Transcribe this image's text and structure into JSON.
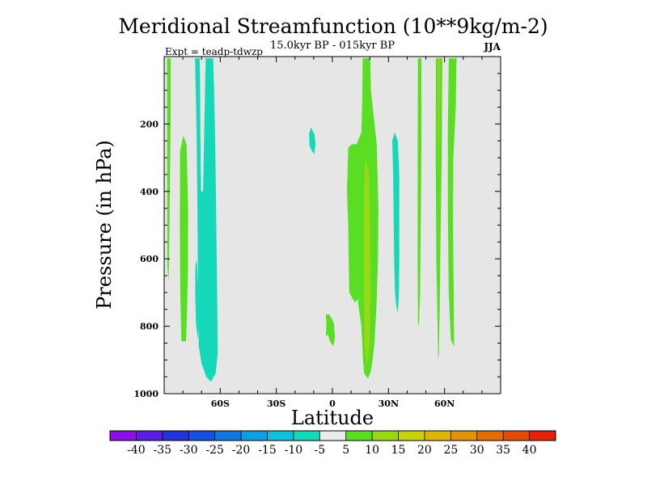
{
  "chart_data": {
    "type": "contour",
    "title": "Meridional Streamfunction (10**9kg/m-2)",
    "subtitle": "15.0kyr BP - 015kyr BP",
    "experiment": "Expt = teadp-tdwzp",
    "season": "JJA",
    "xlabel": "Latitude",
    "ylabel": "Pressure (in hPa)",
    "xlim": [
      -90,
      90
    ],
    "ylim": [
      0,
      1000
    ],
    "y_reversed": true,
    "x_ticks": [
      {
        "value": -60,
        "label": "60S"
      },
      {
        "value": -30,
        "label": "30S"
      },
      {
        "value": 0,
        "label": "0"
      },
      {
        "value": 30,
        "label": "30N"
      },
      {
        "value": 60,
        "label": "60N"
      }
    ],
    "y_ticks": [
      {
        "value": 200,
        "label": "200"
      },
      {
        "value": 400,
        "label": "400"
      },
      {
        "value": 600,
        "label": "600"
      },
      {
        "value": 800,
        "label": "800"
      },
      {
        "value": 1000,
        "label": "1000"
      }
    ],
    "background_color": "#e6e6e6",
    "colorbar": {
      "levels": [
        "-40",
        "-35",
        "-30",
        "-25",
        "-20",
        "-15",
        "-10",
        "-5",
        "5",
        "10",
        "15",
        "20",
        "25",
        "30",
        "35",
        "40"
      ],
      "colors": [
        "#8a10e6",
        "#5a1ee0",
        "#2233d8",
        "#1750df",
        "#1278e0",
        "#0f9ee0",
        "#10c0dc",
        "#14d8b8",
        "#ebebeb",
        "#59de24",
        "#98d815",
        "#c8d20e",
        "#dcb60b",
        "#e0920b",
        "#e26e0a",
        "#e24a09",
        "#e2220a"
      ]
    },
    "regions": [
      {
        "name": "sh-polar-positive-strip",
        "sign": "positive",
        "level": "5 to 10",
        "polygon": [
          [
            -88.5,
            5
          ],
          [
            -86.5,
            5
          ],
          [
            -86.5,
            150
          ],
          [
            -86.8,
            320
          ],
          [
            -87.2,
            520
          ],
          [
            -87.6,
            670
          ],
          [
            -88.3,
            620
          ],
          [
            -88.4,
            300
          ]
        ]
      },
      {
        "name": "sh-60-positive-cell",
        "sign": "positive",
        "level": "5 to 10",
        "polygon": [
          [
            -81.5,
            280
          ],
          [
            -79.8,
            235
          ],
          [
            -78,
            260
          ],
          [
            -77.2,
            450
          ],
          [
            -77.3,
            640
          ],
          [
            -77.8,
            760
          ],
          [
            -78.3,
            845
          ],
          [
            -80.8,
            845
          ],
          [
            -81.4,
            700
          ],
          [
            -81.6,
            500
          ]
        ]
      },
      {
        "name": "sh-60-negative-column",
        "sign": "negative",
        "level": "-5 to -10",
        "polygon": [
          [
            -73.5,
            5
          ],
          [
            -71,
            5
          ],
          [
            -70.8,
            80
          ],
          [
            -70.7,
            180
          ],
          [
            -70.5,
            300
          ],
          [
            -70.3,
            400
          ],
          [
            -69.2,
            400
          ],
          [
            -67.8,
            5
          ],
          [
            -63.8,
            5
          ],
          [
            -63.3,
            100
          ],
          [
            -62.7,
            250
          ],
          [
            -62,
            550
          ],
          [
            -61.6,
            720
          ],
          [
            -61.3,
            880
          ],
          [
            -62.5,
            940
          ],
          [
            -65,
            965
          ],
          [
            -67.5,
            950
          ],
          [
            -70,
            910
          ],
          [
            -71.5,
            860
          ],
          [
            -72,
            600
          ],
          [
            -72.3,
            400
          ],
          [
            -72.6,
            250
          ],
          [
            -73,
            120
          ]
        ]
      },
      {
        "name": "sh-60-negative-lower-cell",
        "sign": "negative",
        "level": "-5 to -10",
        "polygon": [
          [
            -73.3,
            620
          ],
          [
            -72.6,
            600
          ],
          [
            -71.8,
            680
          ],
          [
            -71.5,
            800
          ],
          [
            -72,
            840
          ],
          [
            -73,
            790
          ],
          [
            -73.4,
            700
          ]
        ]
      },
      {
        "name": "sh-15-negative-blob",
        "sign": "negative",
        "level": "-5 to -10",
        "polygon": [
          [
            -12.5,
            230
          ],
          [
            -11.5,
            210
          ],
          [
            -9.6,
            230
          ],
          [
            -9,
            260
          ],
          [
            -9.7,
            290
          ],
          [
            -11,
            280
          ],
          [
            -12.2,
            265
          ]
        ]
      },
      {
        "name": "eq-positive-blob",
        "sign": "positive",
        "level": "5 to 10",
        "polygon": [
          [
            -3.5,
            765
          ],
          [
            -1.8,
            765
          ],
          [
            -0.6,
            775
          ],
          [
            0.8,
            790
          ],
          [
            1.3,
            830
          ],
          [
            0.6,
            860
          ],
          [
            -1.3,
            845
          ],
          [
            -2.4,
            825
          ],
          [
            -3.5,
            830
          ],
          [
            -3.2,
            800
          ]
        ]
      },
      {
        "name": "nh-20-positive-column",
        "sign": "positive",
        "level": "5 to 10",
        "polygon": [
          [
            8.5,
            270
          ],
          [
            10.5,
            260
          ],
          [
            13,
            260
          ],
          [
            15.5,
            225
          ],
          [
            16,
            120
          ],
          [
            16.2,
            5
          ],
          [
            20.3,
            5
          ],
          [
            20.6,
            100
          ],
          [
            21.6,
            150
          ],
          [
            23.7,
            260
          ],
          [
            24.6,
            450
          ],
          [
            24.4,
            600
          ],
          [
            23.5,
            750
          ],
          [
            22.5,
            850
          ],
          [
            21.5,
            900
          ],
          [
            20.5,
            935
          ],
          [
            19,
            955
          ],
          [
            17,
            940
          ],
          [
            16.4,
            900
          ],
          [
            15.5,
            800
          ],
          [
            13.5,
            720
          ],
          [
            12,
            730
          ],
          [
            9,
            700
          ],
          [
            8.5,
            500
          ],
          [
            7.8,
            400
          ]
        ]
      },
      {
        "name": "nh-20-core",
        "sign": "positive",
        "level": "10 to 15",
        "polygon": [
          [
            17.5,
            300
          ],
          [
            19.5,
            340
          ],
          [
            20.2,
            500
          ],
          [
            20.4,
            700
          ],
          [
            20,
            860
          ],
          [
            18.5,
            920
          ],
          [
            17.2,
            850
          ],
          [
            16.9,
            600
          ],
          [
            17,
            400
          ]
        ]
      },
      {
        "name": "nh-30-negative-column",
        "sign": "negative",
        "level": "-5 to -10",
        "polygon": [
          [
            32,
            250
          ],
          [
            33.3,
            225
          ],
          [
            35,
            250
          ],
          [
            35.8,
            350
          ],
          [
            35.8,
            600
          ],
          [
            35.6,
            700
          ],
          [
            35,
            760
          ],
          [
            34.2,
            740
          ],
          [
            33.5,
            700
          ],
          [
            33,
            600
          ],
          [
            32.8,
            480
          ],
          [
            32.5,
            350
          ]
        ]
      },
      {
        "name": "nh-45-positive-strip",
        "sign": "positive",
        "level": "5 to 10",
        "polygon": [
          [
            45.8,
            5
          ],
          [
            47.6,
            5
          ],
          [
            47.7,
            200
          ],
          [
            47.4,
            450
          ],
          [
            46.9,
            700
          ],
          [
            46.3,
            800
          ],
          [
            45.8,
            790
          ],
          [
            45.6,
            600
          ],
          [
            45.6,
            300
          ]
        ]
      },
      {
        "name": "nh-55-positive-strip",
        "sign": "positive",
        "level": "5 to 10",
        "polygon": [
          [
            55.4,
            5
          ],
          [
            58.8,
            5
          ],
          [
            58.5,
            300
          ],
          [
            57.8,
            550
          ],
          [
            57.4,
            750
          ],
          [
            57,
            880
          ],
          [
            56.6,
            900
          ],
          [
            56.3,
            800
          ],
          [
            55.6,
            600
          ],
          [
            55.3,
            300
          ]
        ]
      },
      {
        "name": "nh-55-core",
        "sign": "positive",
        "level": "10 to 15",
        "polygon": [
          [
            56.4,
            5
          ],
          [
            57.4,
            5
          ],
          [
            57.3,
            200
          ],
          [
            56.9,
            350
          ],
          [
            56.5,
            250
          ]
        ]
      },
      {
        "name": "nh-62-positive-strip",
        "sign": "positive",
        "level": "5 to 10",
        "polygon": [
          [
            62.3,
            5
          ],
          [
            66.4,
            5
          ],
          [
            66,
            150
          ],
          [
            64.7,
            300
          ],
          [
            64.5,
            500
          ],
          [
            64.9,
            700
          ],
          [
            65.1,
            860
          ],
          [
            63.4,
            840
          ],
          [
            62.2,
            700
          ],
          [
            61.8,
            450
          ],
          [
            61.8,
            200
          ]
        ]
      }
    ]
  }
}
